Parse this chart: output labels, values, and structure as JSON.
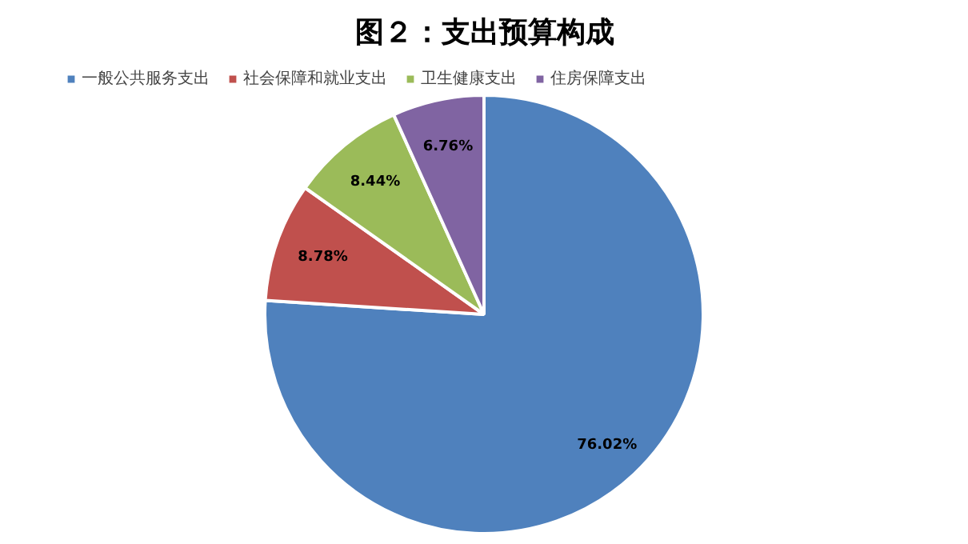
{
  "chart_data": {
    "type": "pie",
    "title": "图２：支出预算构成",
    "categories": [
      "一般公共服务支出",
      "社会保障和就业支出",
      "卫生健康支出",
      "住房保障支出"
    ],
    "values": [
      76.02,
      8.78,
      8.44,
      6.76
    ],
    "colors": [
      "#4f81bd",
      "#c0504d",
      "#9bbb59",
      "#8064a2"
    ],
    "value_labels": [
      "76.02%",
      "8.78%",
      "8.44%",
      "6.76%"
    ],
    "legend": "top"
  }
}
